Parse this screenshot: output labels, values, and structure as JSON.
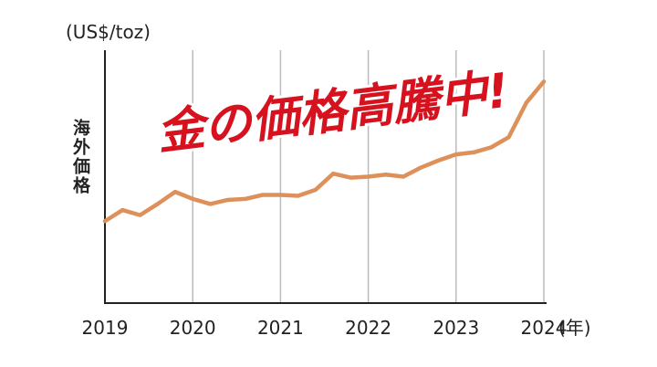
{
  "chart_data": {
    "type": "line",
    "y_label": "(US$/toz)",
    "y_title": "海外価格",
    "annotation": "金の価格高騰中!",
    "x_unit": "(年)",
    "x": [
      2019,
      2019.2,
      2019.4,
      2019.6,
      2019.8,
      2020,
      2020.2,
      2020.4,
      2020.6,
      2020.8,
      2021,
      2021.2,
      2021.4,
      2021.6,
      2021.8,
      2022,
      2022.2,
      2022.4,
      2022.6,
      2022.8,
      2023,
      2023.2,
      2023.4,
      2023.6,
      2023.8,
      2024
    ],
    "series": [
      {
        "color": "#dd9059",
        "values": [
          1310,
          1420,
          1370,
          1480,
          1600,
          1530,
          1480,
          1520,
          1530,
          1570,
          1570,
          1560,
          1620,
          1780,
          1740,
          1750,
          1770,
          1750,
          1840,
          1910,
          1970,
          1990,
          2040,
          2140,
          2480,
          2690
        ]
      }
    ],
    "xlim": [
      2019,
      2024
    ],
    "xticks": [
      2019,
      2020,
      2021,
      2022,
      2023,
      2024
    ],
    "ylim": [
      500,
      3000
    ],
    "grid": true
  }
}
